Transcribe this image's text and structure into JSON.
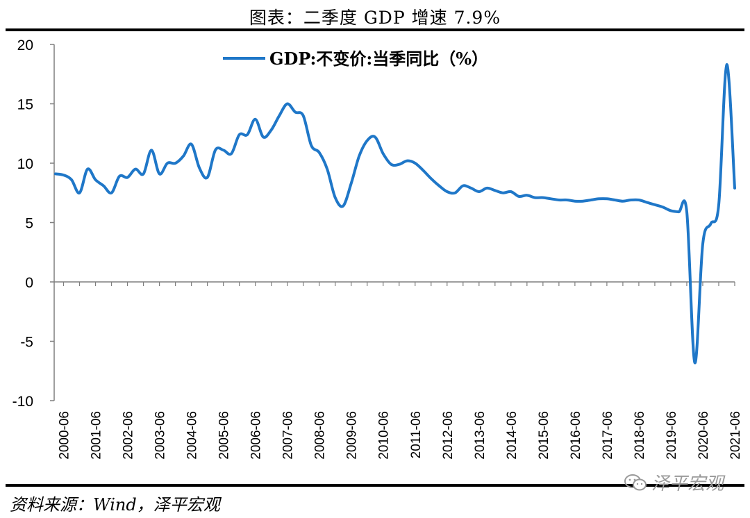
{
  "header": {
    "title": "图表：二季度 GDP 增速 7.9%"
  },
  "footer": {
    "source": "资料来源：Wind，泽平宏观"
  },
  "watermark": {
    "text": "泽平宏观",
    "icon": "wechat-icon"
  },
  "chart_data": {
    "type": "line",
    "title": "图表：二季度 GDP 增速 7.9%",
    "xlabel": "",
    "ylabel": "",
    "ylim": [
      -10,
      20
    ],
    "yticks": [
      -10,
      -5,
      0,
      5,
      10,
      15,
      20
    ],
    "xtick_labels": [
      "2000-06",
      "2001-06",
      "2002-06",
      "2003-06",
      "2004-06",
      "2005-06",
      "2006-06",
      "2007-06",
      "2008-06",
      "2009-06",
      "2010-06",
      "2011-06",
      "2012-06",
      "2013-06",
      "2014-06",
      "2015-06",
      "2016-06",
      "2017-06",
      "2018-06",
      "2019-06",
      "2020-06",
      "2021-06"
    ],
    "legend": {
      "position": "top",
      "entries": [
        "GDP:不变价:当季同比（%）"
      ]
    },
    "grid": false,
    "series": [
      {
        "name": "GDP:不变价:当季同比（%）",
        "color": "#1f77c8",
        "x": [
          "2000-03",
          "2000-06",
          "2000-09",
          "2000-12",
          "2001-03",
          "2001-06",
          "2001-09",
          "2001-12",
          "2002-03",
          "2002-06",
          "2002-09",
          "2002-12",
          "2003-03",
          "2003-06",
          "2003-09",
          "2003-12",
          "2004-03",
          "2004-06",
          "2004-09",
          "2004-12",
          "2005-03",
          "2005-06",
          "2005-09",
          "2005-12",
          "2006-03",
          "2006-06",
          "2006-09",
          "2006-12",
          "2007-03",
          "2007-06",
          "2007-09",
          "2007-12",
          "2008-03",
          "2008-06",
          "2008-09",
          "2008-12",
          "2009-03",
          "2009-06",
          "2009-09",
          "2009-12",
          "2010-03",
          "2010-06",
          "2010-09",
          "2010-12",
          "2011-03",
          "2011-06",
          "2011-09",
          "2011-12",
          "2012-03",
          "2012-06",
          "2012-09",
          "2012-12",
          "2013-03",
          "2013-06",
          "2013-09",
          "2013-12",
          "2014-03",
          "2014-06",
          "2014-09",
          "2014-12",
          "2015-03",
          "2015-06",
          "2015-09",
          "2015-12",
          "2016-03",
          "2016-06",
          "2016-09",
          "2016-12",
          "2017-03",
          "2017-06",
          "2017-09",
          "2017-12",
          "2018-03",
          "2018-06",
          "2018-09",
          "2018-12",
          "2019-03",
          "2019-06",
          "2019-09",
          "2019-12",
          "2020-03",
          "2020-06",
          "2020-09",
          "2020-12",
          "2021-03",
          "2021-06"
        ],
        "values": [
          9.1,
          9.0,
          8.6,
          7.5,
          9.5,
          8.6,
          8.1,
          7.5,
          8.9,
          8.8,
          9.5,
          9.1,
          11.1,
          9.1,
          10.0,
          10.0,
          10.6,
          11.6,
          9.6,
          8.8,
          11.1,
          11.1,
          10.8,
          12.4,
          12.4,
          13.7,
          12.2,
          12.8,
          14.0,
          15.0,
          14.3,
          14.0,
          11.5,
          10.9,
          9.5,
          7.1,
          6.4,
          8.3,
          10.6,
          11.9,
          12.2,
          10.8,
          9.9,
          9.9,
          10.2,
          10.0,
          9.4,
          8.7,
          8.1,
          7.6,
          7.5,
          8.1,
          7.9,
          7.6,
          7.9,
          7.7,
          7.5,
          7.6,
          7.2,
          7.3,
          7.1,
          7.1,
          7.0,
          6.9,
          6.9,
          6.8,
          6.8,
          6.9,
          7.0,
          7.0,
          6.9,
          6.8,
          6.9,
          6.9,
          6.7,
          6.5,
          6.3,
          6.0,
          5.9,
          5.9,
          -6.8,
          3.2,
          4.9,
          6.5,
          18.3,
          7.9
        ]
      }
    ]
  }
}
